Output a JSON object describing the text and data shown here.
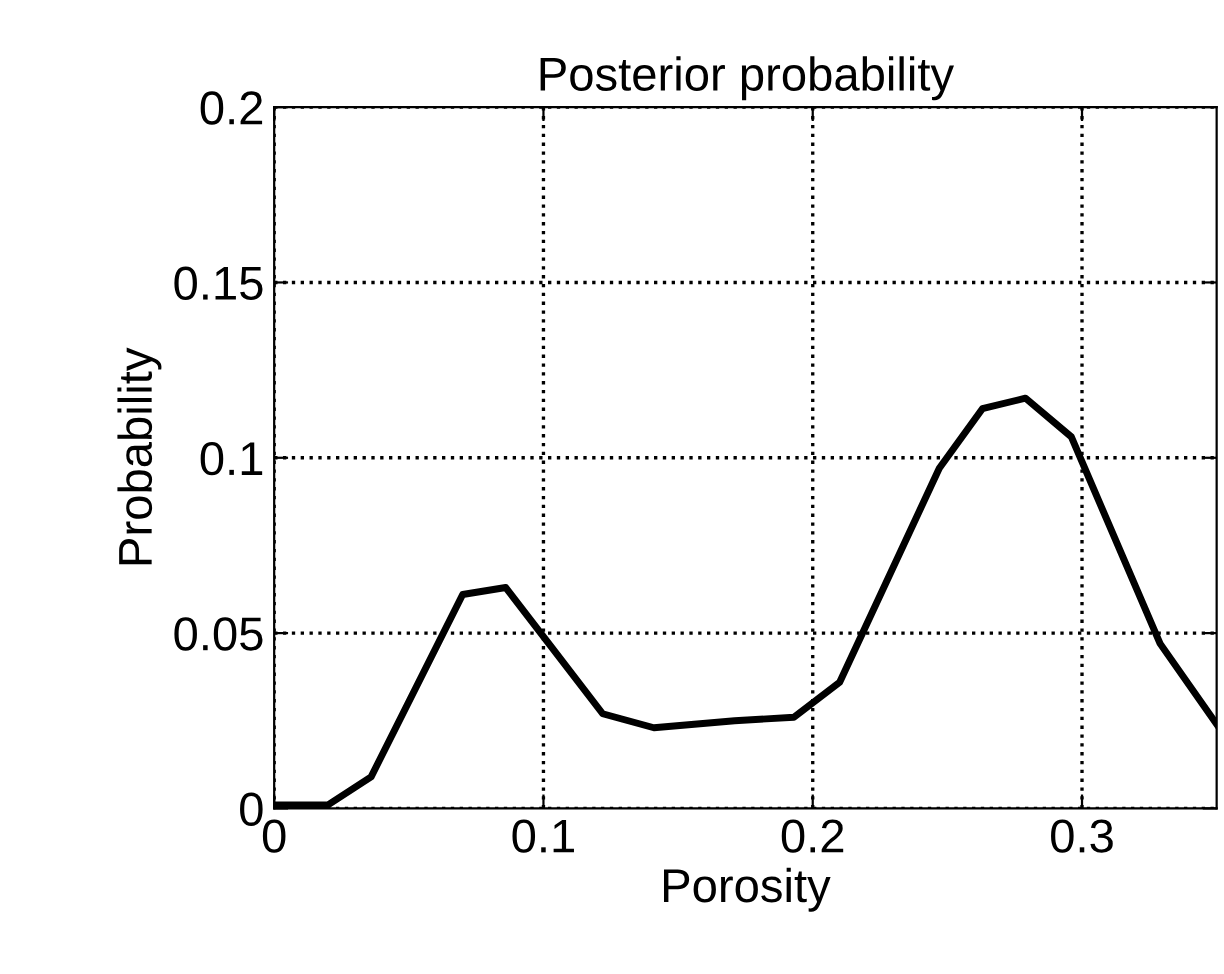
{
  "chart_data": {
    "type": "line",
    "title": "Posterior probability",
    "xlabel": "Porosity",
    "ylabel": "Probability",
    "series": [
      {
        "color": "#000000",
        "x": [
          0,
          0.02,
          0.036,
          0.07,
          0.086,
          0.102,
          0.122,
          0.141,
          0.171,
          0.193,
          0.21,
          0.247,
          0.263,
          0.279,
          0.296,
          0.329,
          0.35
        ],
        "values": [
          0.001,
          0.001,
          0.009,
          0.061,
          0.063,
          0.047,
          0.027,
          0.023,
          0.025,
          0.026,
          0.036,
          0.097,
          0.114,
          0.117,
          0.106,
          0.047,
          0.024
        ]
      }
    ],
    "xlim": [
      0,
      0.35
    ],
    "ylim": [
      0,
      0.2
    ],
    "xticks": [
      0,
      0.1,
      0.2,
      0.3
    ],
    "yticks": [
      0,
      0.05,
      0.1,
      0.15,
      0.2
    ],
    "grid": true,
    "line_style": "solid"
  }
}
